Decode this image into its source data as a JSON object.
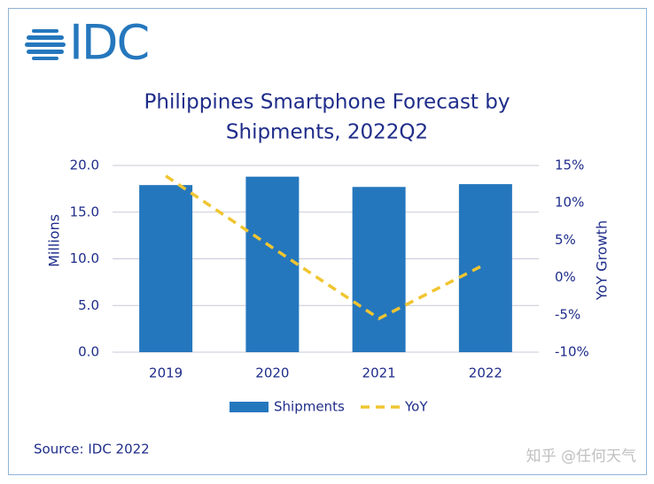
{
  "logo": "IDC",
  "source": "Source: IDC 2022",
  "watermark": "知乎 @任何天气",
  "chart_data": {
    "type": "bar-line",
    "title": [
      "Philippines Smartphone Forecast by",
      "Shipments, 2022Q2"
    ],
    "categories": [
      "2019",
      "2020",
      "2021",
      "2022"
    ],
    "y_label": "Millions",
    "y2_label": "YoY Growth",
    "ylim": [
      0,
      20
    ],
    "yticks": [
      {
        "value": 0,
        "label": "0.0"
      },
      {
        "value": 5,
        "label": "5.0"
      },
      {
        "value": 10,
        "label": "10.0"
      },
      {
        "value": 15,
        "label": "15.0"
      },
      {
        "value": 20,
        "label": "20.0"
      }
    ],
    "y2lim": [
      -10,
      15
    ],
    "y2ticks": [
      {
        "value": -10,
        "label": "-10%"
      },
      {
        "value": -5,
        "label": "-5%"
      },
      {
        "value": 0,
        "label": "0%"
      },
      {
        "value": 5,
        "label": "5%"
      },
      {
        "value": 10,
        "label": "10%"
      },
      {
        "value": 15,
        "label": "15%"
      }
    ],
    "grid": true,
    "legend": "bottom",
    "series": [
      {
        "name": "Shipments",
        "type": "bar",
        "color": "#2577bd",
        "values": [
          17.9,
          18.8,
          17.7,
          18.0
        ]
      },
      {
        "name": "YoY",
        "type": "line",
        "axis": "y2",
        "color": "#f0c530",
        "values": [
          13.6,
          4.0,
          -5.5,
          1.8
        ]
      }
    ]
  }
}
